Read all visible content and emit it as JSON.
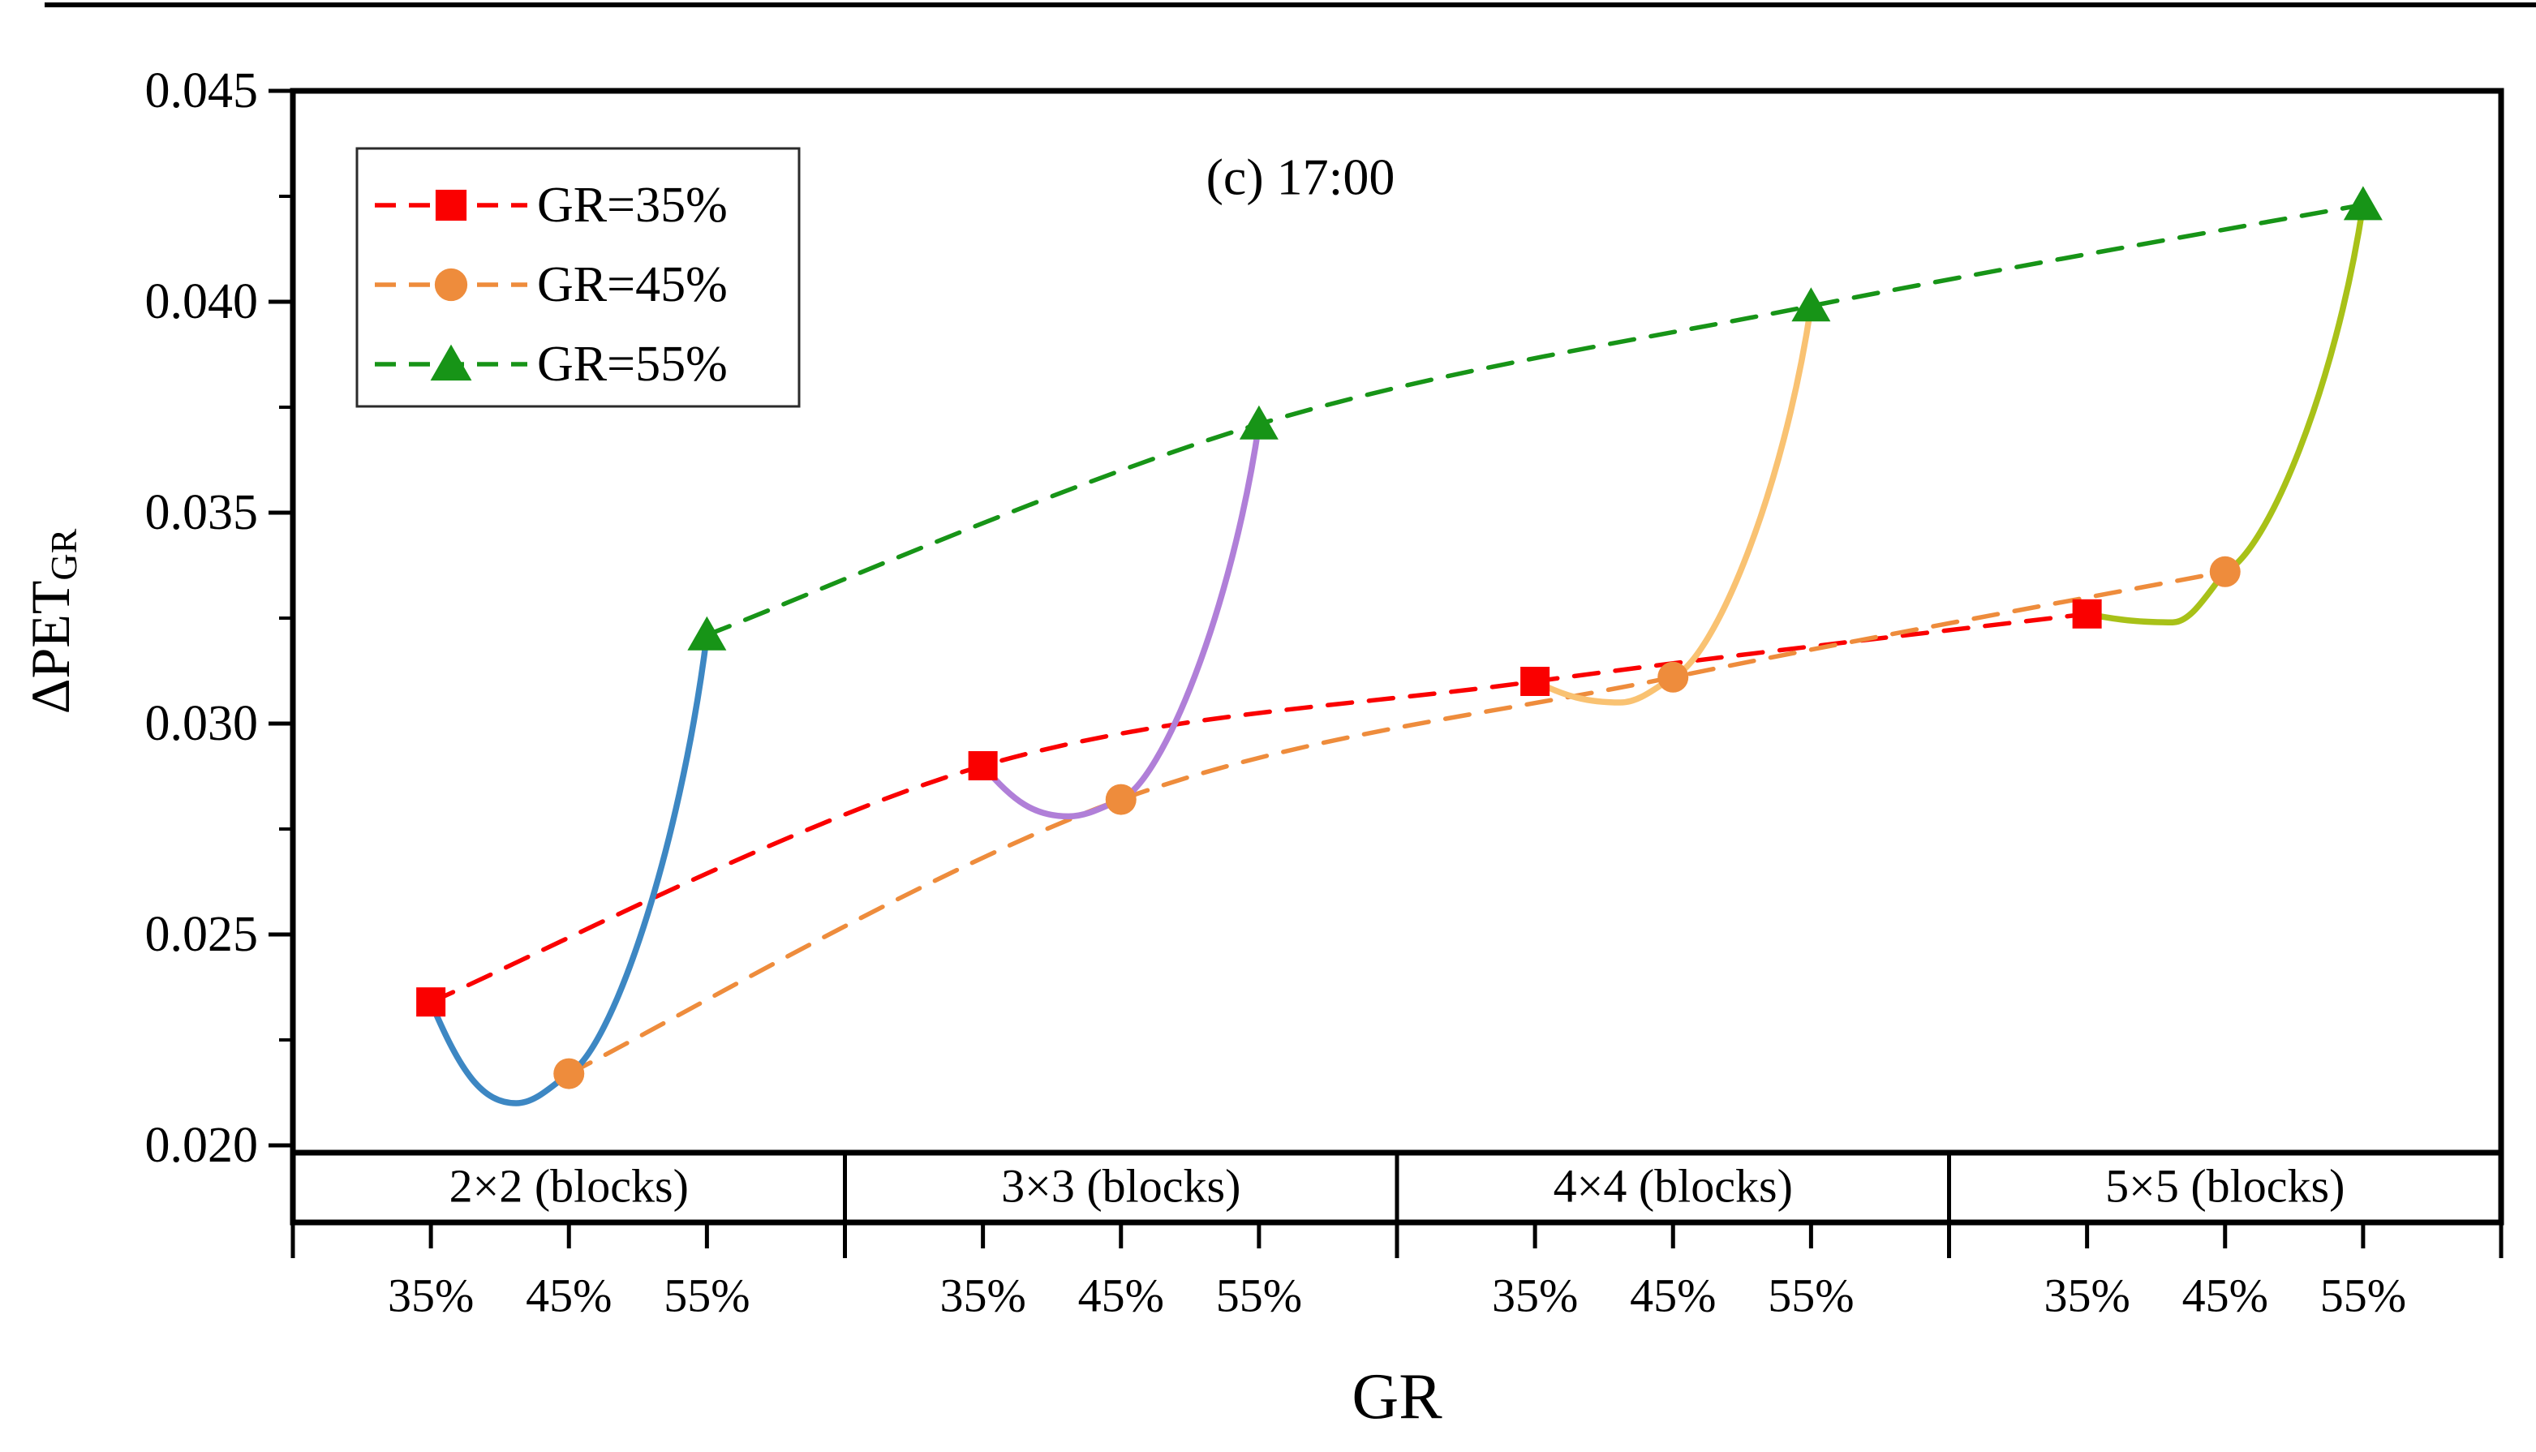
{
  "chart_data": {
    "type": "line",
    "title": "(c) 17:00",
    "xlabel": "GR",
    "ylabel": "ΔPET_GR",
    "ylabel_main": "ΔPET",
    "ylabel_sub": "GR",
    "ylim": [
      0.0198,
      0.045
    ],
    "yticks": [
      0.02,
      0.025,
      0.03,
      0.035,
      0.04,
      0.045
    ],
    "ytick_labels": [
      "0.020",
      "0.025",
      "0.030",
      "0.035",
      "0.040",
      "0.045"
    ],
    "minor_ytick_values": [
      0.0225,
      0.0275,
      0.0325,
      0.0375,
      0.0425
    ],
    "grid": false,
    "legend_position": "top-left",
    "groups": [
      "2×2 (blocks)",
      "3×3 (blocks)",
      "4×4 (blocks)",
      "5×5 (blocks)"
    ],
    "categories": [
      "35%",
      "45%",
      "55%"
    ],
    "series": [
      {
        "name": "GR=35%",
        "marker": "square",
        "linestyle": "dashed",
        "color": "#fa0000",
        "values": [
          0.0234,
          0.029,
          0.031,
          0.0326
        ]
      },
      {
        "name": "GR=45%",
        "marker": "circle",
        "linestyle": "dashed",
        "color": "#ee8c3c",
        "values": [
          0.0217,
          0.0282,
          0.0311,
          0.0336
        ]
      },
      {
        "name": "GR=55%",
        "marker": "triangle",
        "linestyle": "dashed",
        "color": "#179417",
        "values": [
          0.0321,
          0.0371,
          0.0399,
          0.0423
        ]
      }
    ],
    "solid_curves": [
      {
        "group": "2×2 (blocks)",
        "color": "#3d87c3",
        "connects": [
          "35%",
          "45%",
          "55%"
        ],
        "dip_value": 0.021
      },
      {
        "group": "3×3 (blocks)",
        "color": "#b07fd8",
        "connects": [
          "35%",
          "45%",
          "55%"
        ],
        "dip_value": 0.0278
      },
      {
        "group": "4×4 (blocks)",
        "color": "#f9c272",
        "connects": [
          "35%",
          "45%",
          "55%"
        ],
        "dip_value": 0.0305
      },
      {
        "group": "5×5 (blocks)",
        "color": "#a8c118",
        "connects": [
          "35%",
          "45%",
          "55%"
        ],
        "dip_value": 0.0324
      }
    ],
    "frame_color": "#000000",
    "background": "#ffffff"
  }
}
